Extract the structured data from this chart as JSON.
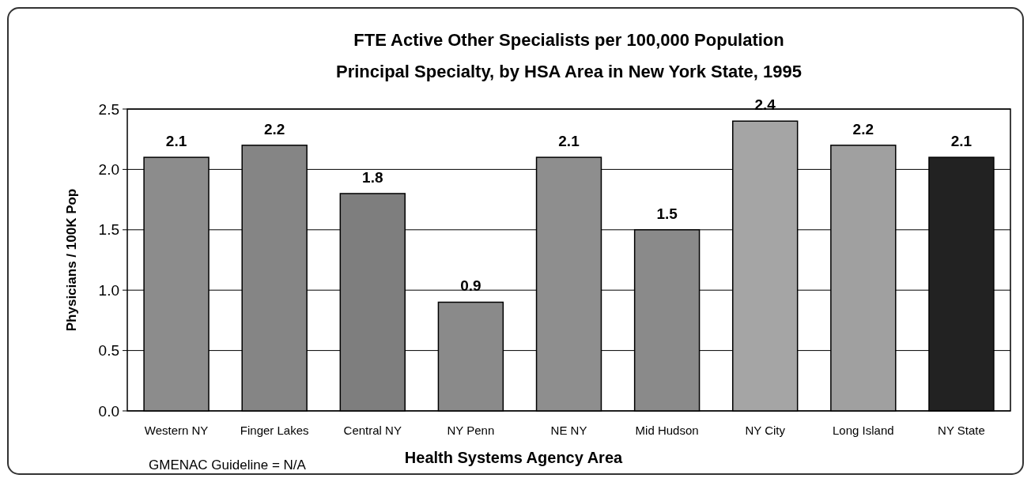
{
  "chart_data": {
    "type": "bar",
    "title": "FTE Active Other Specialists per 100,000 Population",
    "subtitle": "Principal Specialty, by HSA Area in New York State, 1995",
    "xlabel": "Health Systems Agency Area",
    "ylabel": "Physicians / 100K Pop",
    "categories": [
      "Western NY",
      "Finger Lakes",
      "Central NY",
      "NY Penn",
      "NE NY",
      "Mid Hudson",
      "NY City",
      "Long Island",
      "NY State"
    ],
    "values": [
      2.1,
      2.2,
      1.8,
      0.9,
      2.1,
      1.5,
      2.4,
      2.2,
      2.1
    ],
    "colors": [
      "#8c8c8c",
      "#858585",
      "#7e7e7e",
      "#8a8a8a",
      "#8e8e8e",
      "#8a8a8a",
      "#a5a5a5",
      "#a0a0a0",
      "#222222"
    ],
    "ylim": [
      0,
      2.5
    ],
    "yticks": [
      {
        "value": 0,
        "label": "0.0"
      },
      0.5,
      {
        "value": 1,
        "label": "1.0"
      },
      1.5,
      {
        "value": 2,
        "label": "2.0"
      },
      2.5
    ],
    "grid": "y",
    "data_labels": true,
    "annotations": [
      "GMENAC Guideline  =  N/A"
    ]
  }
}
